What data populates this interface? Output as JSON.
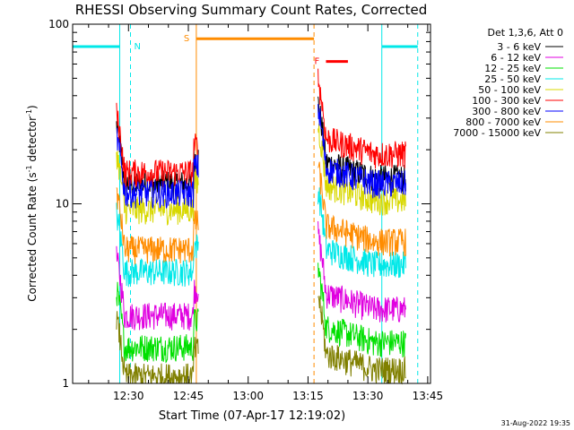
{
  "chart_data": {
    "type": "line",
    "title": "RHESSI Observing Summary Count Rates, Corrected",
    "xlabel": "Start Time (07-Apr-17 12:19:02)",
    "ylabel_main": "Corrected Count Rate (s",
    "ylabel_sup1": "-1",
    "ylabel_mid": " detector",
    "ylabel_sup2": "-1",
    "ylabel_end": ")",
    "footer": "31-Aug-2022 19:35",
    "x_unit": "minutes since 12:19:02",
    "xlim": [
      -3.0,
      86.7
    ],
    "ylim": [
      1,
      100
    ],
    "y_scale": "log",
    "x_ticks": [
      {
        "value": 11.0,
        "label": "12:30"
      },
      {
        "value": 26.0,
        "label": "12:45"
      },
      {
        "value": 41.0,
        "label": "13:00"
      },
      {
        "value": 56.0,
        "label": "13:15"
      },
      {
        "value": 71.0,
        "label": "13:30"
      },
      {
        "value": 86.0,
        "label": "13:45"
      }
    ],
    "y_ticks": [
      {
        "value": 1,
        "label": "1"
      },
      {
        "value": 10,
        "label": "10"
      },
      {
        "value": 100,
        "label": "100"
      }
    ],
    "legend_header": "Det 1,3,6, Att 0",
    "legend_position": "right",
    "segments": [
      [
        8.0,
        28.5
      ],
      [
        58.5,
        80.5
      ]
    ],
    "series": [
      {
        "name": "3 - 6 keV",
        "color": "#000000",
        "levels": [
          13,
          14
        ]
      },
      {
        "name": "6 - 12 keV",
        "color": "#e000e0",
        "levels": [
          2.4,
          2.6
        ]
      },
      {
        "name": "12 - 25 keV",
        "color": "#00e000",
        "levels": [
          1.6,
          1.7
        ]
      },
      {
        "name": "25 - 50 keV",
        "color": "#00e8e8",
        "levels": [
          4.2,
          4.6
        ]
      },
      {
        "name": "50 - 100 keV",
        "color": "#d8d800",
        "levels": [
          9.3,
          10.5
        ]
      },
      {
        "name": "100 - 300 keV",
        "color": "#ff0000",
        "levels": [
          15,
          19
        ]
      },
      {
        "name": "300 - 800 keV",
        "color": "#0000ff",
        "levels": [
          11.5,
          13
        ]
      },
      {
        "name": "800 - 7000 keV",
        "color": "#ff8c00",
        "levels": [
          5.6,
          6.2
        ]
      },
      {
        "name": "7000 - 15000 keV",
        "color": "#808000",
        "levels": [
          1.1,
          1.2
        ]
      }
    ],
    "flags": [
      {
        "name": "N",
        "color": "#00e8e8",
        "intervals": [
          [
            -3.0,
            8.8
          ],
          [
            74.5,
            83.5
          ]
        ],
        "level": 75,
        "vlines": [
          8.8,
          11.5,
          74.5,
          83.5
        ]
      },
      {
        "name": "S",
        "color": "#ff8c00",
        "intervals": [
          [
            28.0,
            57.5
          ]
        ],
        "level": 83,
        "vlines": [
          28.0,
          57.5
        ]
      },
      {
        "name": "F",
        "color": "#ff0000",
        "intervals": [
          [
            60.5,
            66.0
          ]
        ],
        "level": 62,
        "vlines": []
      }
    ]
  }
}
